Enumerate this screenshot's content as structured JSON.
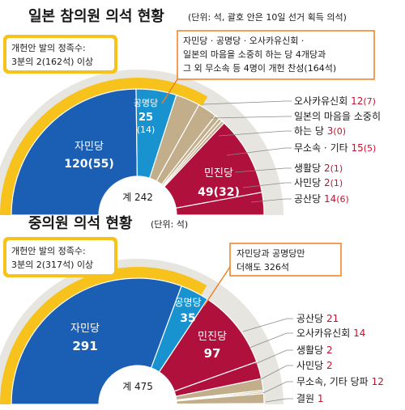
{
  "colors": {
    "ldp": "#1a5fb4",
    "komeito": "#1893cf",
    "dpj": "#b0103c",
    "other": "#c2ae8a",
    "gold": "#f7c21c",
    "track": "#e7e5df",
    "pct": "#c8102e",
    "leaderOrange": "#f07d1e",
    "leaderGray": "#777777"
  },
  "upper": {
    "title": "일본 참의원 의석 현황",
    "subtitle": "(단위: 석, 괄호 안은 10일 선거 획득 의석)",
    "threshold_box": [
      "개헌안 발의 정족수:",
      "3분의 2(162석) 이상"
    ],
    "note_box": [
      "자민당 · 공명당 · 오사카유신회 ·",
      "일본의 마음을 소중히 하는 당 4개당과",
      "그 외 무소속 등 4명이 개헌 찬성(164석)"
    ],
    "total": "계 242",
    "labels": {
      "ldp_name": "자민당",
      "ldp_val": "120",
      "ldp_won": "(55)",
      "komeito_name": "공명당",
      "komeito_val": "25",
      "komeito_won": "(14)",
      "dpj_name": "민진당",
      "dpj_val": "49",
      "dpj_won": "(32)"
    },
    "side_items": [
      {
        "name": "오사카유신회",
        "value": "12",
        "won": "(7)"
      },
      {
        "name": "일본의 마음을 소중히",
        "value": "",
        "won": ""
      },
      {
        "name": "하는 당",
        "value": "3",
        "won": "(0)"
      },
      {
        "name": "무소속 · 기타",
        "value": "15",
        "won": "(5)"
      },
      {
        "name": "생활당",
        "value": "2",
        "won": "(1)"
      },
      {
        "name": "사민당",
        "value": "2",
        "won": "(1)"
      },
      {
        "name": "공산당",
        "value": "14",
        "won": "(6)"
      }
    ]
  },
  "lower": {
    "title": "중의원 의석 현황",
    "subtitle": "(단위: 석)",
    "threshold_box": [
      "개헌안 발의 정족수:",
      "3분의 2(317석) 이상"
    ],
    "note_box": [
      "자민당과 공명당만",
      "더해도 326석"
    ],
    "total": "계 475",
    "labels": {
      "ldp_name": "자민당",
      "ldp_val": "291",
      "komeito_name": "공명당",
      "komeito_val": "35",
      "dpj_name": "민진당",
      "dpj_val": "97"
    },
    "side_items": [
      {
        "name": "공산당",
        "value": "21"
      },
      {
        "name": "오사카유신회",
        "value": "14"
      },
      {
        "name": "생활당",
        "value": "2"
      },
      {
        "name": "사민당",
        "value": "2"
      },
      {
        "name": "무소속, 기타 당파",
        "value": "12"
      },
      {
        "name": "결원",
        "value": "1"
      }
    ]
  },
  "chart_data": [
    {
      "type": "pie",
      "title": "일본 참의원 의석 현황",
      "subtitle": "(단위: 석, 괄호 안은 10일 선거 획득 의석)",
      "total": 242,
      "threshold": 162,
      "categories": [
        "자민당",
        "공명당",
        "무소속 · 기타",
        "오사카유신회",
        "일본의 마음을 소중히 하는 당",
        "생활당",
        "사민당",
        "민진당",
        "공산당"
      ],
      "values": [
        120,
        25,
        15,
        12,
        3,
        2,
        2,
        49,
        14
      ],
      "won": [
        55,
        14,
        5,
        7,
        0,
        1,
        1,
        32,
        6
      ]
    },
    {
      "type": "pie",
      "title": "중의원 의석 현황",
      "subtitle": "(단위: 석)",
      "total": 475,
      "threshold": 317,
      "categories": [
        "자민당",
        "공명당",
        "민진당",
        "공산당",
        "오사카유신회",
        "생활당",
        "사민당",
        "무소속, 기타 당파",
        "결원"
      ],
      "values": [
        291,
        35,
        97,
        21,
        14,
        2,
        2,
        12,
        1
      ]
    }
  ]
}
